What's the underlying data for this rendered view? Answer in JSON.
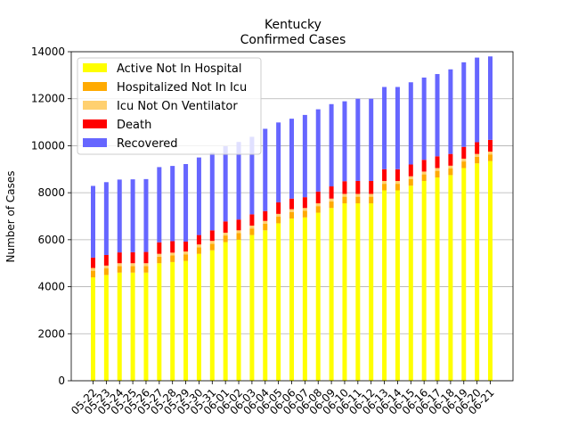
{
  "chart_data": {
    "type": "bar",
    "stacked": true,
    "title": "Kentucky",
    "subtitle": "Confirmed Cases",
    "xlabel": "",
    "ylabel": "Number of Cases",
    "ylim": [
      0,
      14000
    ],
    "yticks": [
      0,
      2000,
      4000,
      6000,
      8000,
      10000,
      12000,
      14000
    ],
    "grid": "horizontal",
    "legend_position": "top-left",
    "categories": [
      "05-22",
      "05-23",
      "05-24",
      "05-25",
      "05-26",
      "05-27",
      "05-28",
      "05-29",
      "05-30",
      "05-31",
      "06-01",
      "06-02",
      "06-03",
      "06-04",
      "06-05",
      "06-06",
      "06-07",
      "06-08",
      "06-09",
      "06-10",
      "06-11",
      "06-12",
      "06-13",
      "06-14",
      "06-15",
      "06-16",
      "06-17",
      "06-18",
      "06-19",
      "06-20",
      "06-21"
    ],
    "series": [
      {
        "name": "Active Not In Hospital",
        "color": "#ffff00",
        "values": [
          4400,
          4500,
          4600,
          4600,
          4600,
          5000,
          5050,
          5100,
          5400,
          5550,
          5900,
          6000,
          6200,
          6400,
          6700,
          6900,
          6950,
          7150,
          7350,
          7550,
          7550,
          7550,
          8100,
          8100,
          8300,
          8500,
          8650,
          8750,
          9050,
          9250,
          9350
        ]
      },
      {
        "name": "Hospitalized Not In Icu",
        "color": "#ffaa00",
        "values": [
          280,
          280,
          280,
          280,
          280,
          280,
          280,
          280,
          280,
          280,
          280,
          280,
          280,
          280,
          280,
          280,
          280,
          280,
          280,
          280,
          280,
          280,
          280,
          280,
          280,
          280,
          280,
          280,
          280,
          280,
          280
        ]
      },
      {
        "name": "Icu Not On Ventilator",
        "color": "#ffd070",
        "values": [
          120,
          120,
          120,
          120,
          120,
          120,
          120,
          120,
          120,
          120,
          120,
          120,
          120,
          120,
          120,
          120,
          120,
          120,
          120,
          120,
          120,
          120,
          120,
          120,
          120,
          120,
          120,
          120,
          120,
          120,
          120
        ]
      },
      {
        "name": "Death",
        "color": "#ff0000",
        "values": [
          440,
          450,
          460,
          470,
          480,
          490,
          490,
          420,
          400,
          450,
          480,
          460,
          480,
          420,
          490,
          450,
          460,
          500,
          520,
          540,
          550,
          550,
          500,
          500,
          500,
          500,
          500,
          500,
          500,
          500,
          500
        ]
      },
      {
        "name": "Recovered",
        "color": "#6666ff",
        "values": [
          3050,
          3100,
          3100,
          3100,
          3100,
          3200,
          3200,
          3300,
          3300,
          3300,
          3200,
          3300,
          3300,
          3500,
          3400,
          3400,
          3500,
          3500,
          3500,
          3400,
          3500,
          3500,
          3500,
          3500,
          3500,
          3500,
          3500,
          3600,
          3600,
          3600,
          3550
        ]
      }
    ]
  }
}
